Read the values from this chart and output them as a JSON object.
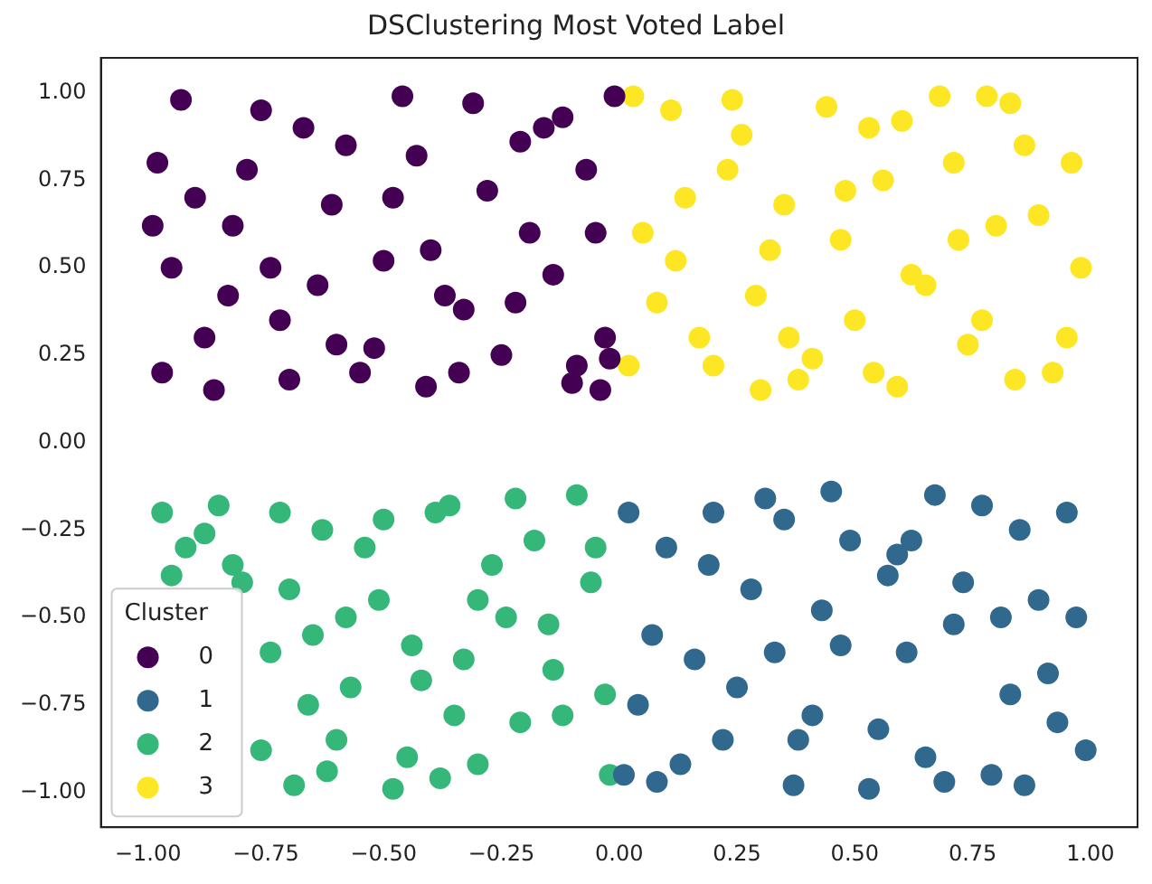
{
  "chart_data": {
    "type": "scatter",
    "title": "DSClustering Most Voted Label",
    "legend_title": "Cluster",
    "legend": "bottom left",
    "marker": "circle",
    "grid": false,
    "xlim": [
      -1.1,
      1.1
    ],
    "ylim": [
      -1.1,
      1.1
    ],
    "xticks": [
      {
        "value": -1,
        "label": "−1.00"
      },
      {
        "value": -0.75,
        "label": "−0.75"
      },
      {
        "value": -0.5,
        "label": "−0.50"
      },
      {
        "value": -0.25,
        "label": "−0.25"
      },
      {
        "value": 0,
        "label": "0.00"
      },
      {
        "value": 0.25,
        "label": "0.25"
      },
      {
        "value": 0.5,
        "label": "0.50"
      },
      {
        "value": 0.75,
        "label": "0.75"
      },
      {
        "value": 1,
        "label": "1.00"
      }
    ],
    "yticks": [
      {
        "value": -1,
        "label": "−1.00"
      },
      {
        "value": -0.75,
        "label": "−0.75"
      },
      {
        "value": -0.5,
        "label": "−0.50"
      },
      {
        "value": -0.25,
        "label": "−0.25"
      },
      {
        "value": 0,
        "label": "0.00"
      },
      {
        "value": 0.25,
        "label": "0.25"
      },
      {
        "value": 0.5,
        "label": "0.50"
      },
      {
        "value": 0.75,
        "label": "0.75"
      },
      {
        "value": 1,
        "label": "1.00"
      }
    ],
    "series": [
      {
        "name": "0",
        "color": "#440154",
        "x": [
          -0.98,
          -0.93,
          -0.88,
          -0.82,
          -0.76,
          -0.7,
          -0.64,
          -0.58,
          -0.52,
          -0.46,
          -0.4,
          -0.34,
          -0.28,
          -0.22,
          -0.16,
          -0.1,
          -0.05,
          -0.01,
          -0.95,
          -0.86,
          -0.79,
          -0.72,
          -0.61,
          -0.55,
          -0.43,
          -0.37,
          -0.25,
          -0.19,
          -0.12,
          -0.03,
          -0.97,
          -0.9,
          -0.83,
          -0.67,
          -0.5,
          -0.41,
          -0.31,
          -0.14,
          -0.07,
          -0.02,
          -0.99,
          -0.74,
          -0.6,
          -0.48,
          -0.33,
          -0.21,
          -0.09,
          -0.04
        ],
        "values": [
          0.8,
          0.98,
          0.3,
          0.62,
          0.95,
          0.18,
          0.45,
          0.85,
          0.27,
          0.99,
          0.55,
          0.2,
          0.72,
          0.4,
          0.9,
          0.17,
          0.6,
          0.99,
          0.5,
          0.15,
          0.78,
          0.35,
          0.68,
          0.2,
          0.82,
          0.42,
          0.25,
          0.6,
          0.93,
          0.3,
          0.2,
          0.7,
          0.42,
          0.9,
          0.52,
          0.16,
          0.97,
          0.48,
          0.78,
          0.24,
          0.62,
          0.5,
          0.28,
          0.7,
          0.38,
          0.86,
          0.22,
          0.15
        ]
      },
      {
        "name": "1",
        "color": "#31688e",
        "x": [
          0.02,
          0.07,
          0.13,
          0.19,
          0.25,
          0.31,
          0.37,
          0.43,
          0.49,
          0.55,
          0.61,
          0.67,
          0.73,
          0.79,
          0.85,
          0.91,
          0.97,
          0.99,
          0.04,
          0.1,
          0.16,
          0.22,
          0.28,
          0.35,
          0.41,
          0.47,
          0.53,
          0.59,
          0.65,
          0.71,
          0.77,
          0.83,
          0.89,
          0.95,
          0.01,
          0.08,
          0.2,
          0.33,
          0.45,
          0.57,
          0.69,
          0.81,
          0.93,
          0.38,
          0.62,
          0.86
        ],
        "values": [
          -0.2,
          -0.55,
          -0.92,
          -0.35,
          -0.7,
          -0.16,
          -0.98,
          -0.48,
          -0.28,
          -0.82,
          -0.6,
          -0.15,
          -0.4,
          -0.95,
          -0.25,
          -0.66,
          -0.5,
          -0.88,
          -0.75,
          -0.3,
          -0.62,
          -0.85,
          -0.42,
          -0.22,
          -0.78,
          -0.58,
          -0.99,
          -0.32,
          -0.9,
          -0.52,
          -0.18,
          -0.72,
          -0.45,
          -0.2,
          -0.95,
          -0.97,
          -0.2,
          -0.6,
          -0.14,
          -0.38,
          -0.97,
          -0.5,
          -0.8,
          -0.85,
          -0.28,
          -0.98
        ]
      },
      {
        "name": "2",
        "color": "#35b779",
        "x": [
          -0.97,
          -0.92,
          -0.85,
          -0.8,
          -0.74,
          -0.69,
          -0.63,
          -0.57,
          -0.51,
          -0.45,
          -0.39,
          -0.33,
          -0.27,
          -0.21,
          -0.15,
          -0.09,
          -0.03,
          -0.95,
          -0.88,
          -0.82,
          -0.76,
          -0.7,
          -0.65,
          -0.6,
          -0.54,
          -0.48,
          -0.42,
          -0.36,
          -0.3,
          -0.24,
          -0.18,
          -0.12,
          -0.06,
          -0.02,
          -0.72,
          -0.66,
          -0.58,
          -0.5,
          -0.44,
          -0.38,
          -0.3,
          -0.22,
          -0.14,
          -0.05,
          -0.62,
          -0.35
        ],
        "values": [
          -0.2,
          -0.3,
          -0.18,
          -0.4,
          -0.6,
          -0.98,
          -0.25,
          -0.7,
          -0.45,
          -0.9,
          -0.2,
          -0.62,
          -0.35,
          -0.8,
          -0.52,
          -0.15,
          -0.72,
          -0.38,
          -0.26,
          -0.35,
          -0.88,
          -0.42,
          -0.55,
          -0.85,
          -0.3,
          -0.99,
          -0.68,
          -0.18,
          -0.92,
          -0.5,
          -0.28,
          -0.78,
          -0.4,
          -0.95,
          -0.2,
          -0.75,
          -0.5,
          -0.22,
          -0.58,
          -0.96,
          -0.45,
          -0.16,
          -0.65,
          -0.3,
          -0.94,
          -0.78
        ]
      },
      {
        "name": "3",
        "color": "#fde725",
        "x": [
          0.03,
          0.08,
          0.14,
          0.2,
          0.26,
          0.32,
          0.38,
          0.44,
          0.5,
          0.56,
          0.62,
          0.68,
          0.74,
          0.8,
          0.86,
          0.92,
          0.98,
          0.05,
          0.11,
          0.17,
          0.23,
          0.29,
          0.35,
          0.41,
          0.47,
          0.53,
          0.59,
          0.65,
          0.71,
          0.77,
          0.83,
          0.89,
          0.95,
          0.02,
          0.12,
          0.24,
          0.36,
          0.48,
          0.6,
          0.72,
          0.84,
          0.96,
          0.3,
          0.54,
          0.78
        ],
        "values": [
          0.99,
          0.4,
          0.7,
          0.22,
          0.88,
          0.55,
          0.18,
          0.96,
          0.35,
          0.75,
          0.48,
          0.99,
          0.28,
          0.62,
          0.85,
          0.2,
          0.5,
          0.6,
          0.95,
          0.3,
          0.78,
          0.42,
          0.68,
          0.24,
          0.58,
          0.9,
          0.16,
          0.45,
          0.8,
          0.35,
          0.97,
          0.65,
          0.3,
          0.22,
          0.52,
          0.98,
          0.3,
          0.72,
          0.92,
          0.58,
          0.18,
          0.8,
          0.15,
          0.2,
          0.99
        ]
      }
    ]
  }
}
